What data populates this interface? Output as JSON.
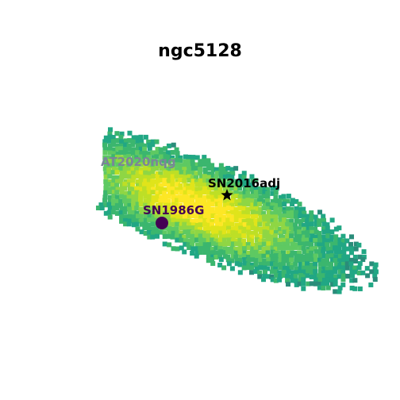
{
  "title": "ngc5128",
  "image": {
    "colormap": "viridis",
    "background": "#ffffff"
  },
  "annotations": [
    {
      "label": "SN2016adj",
      "marker": "star",
      "color": "#000000"
    },
    {
      "label": "SN1986G",
      "marker": "circle",
      "color": "#440154"
    },
    {
      "label": "AT2020nqg",
      "marker": "none",
      "color": "#7a8599"
    }
  ]
}
